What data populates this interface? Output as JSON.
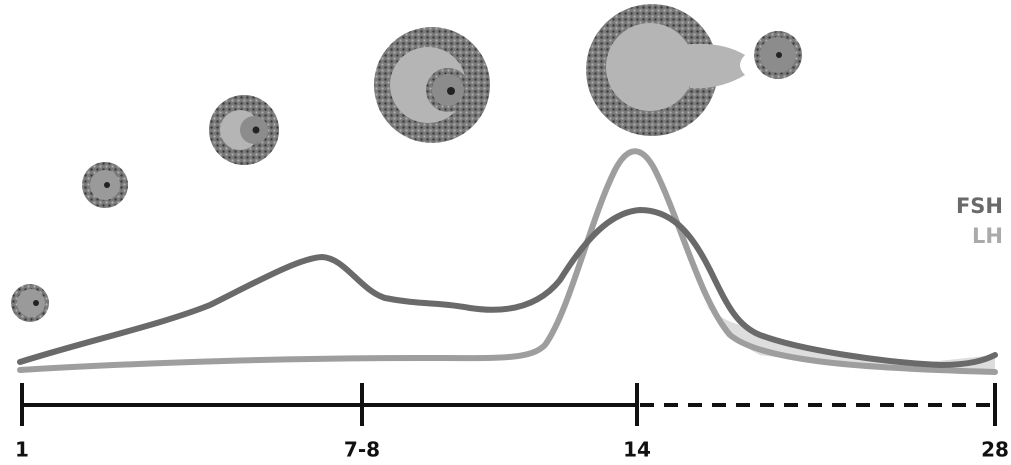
{
  "legend": {
    "items": [
      "FSH",
      "LH"
    ]
  },
  "axis": {
    "labels": [
      "1",
      "7-8",
      "14",
      "28"
    ]
  }
}
